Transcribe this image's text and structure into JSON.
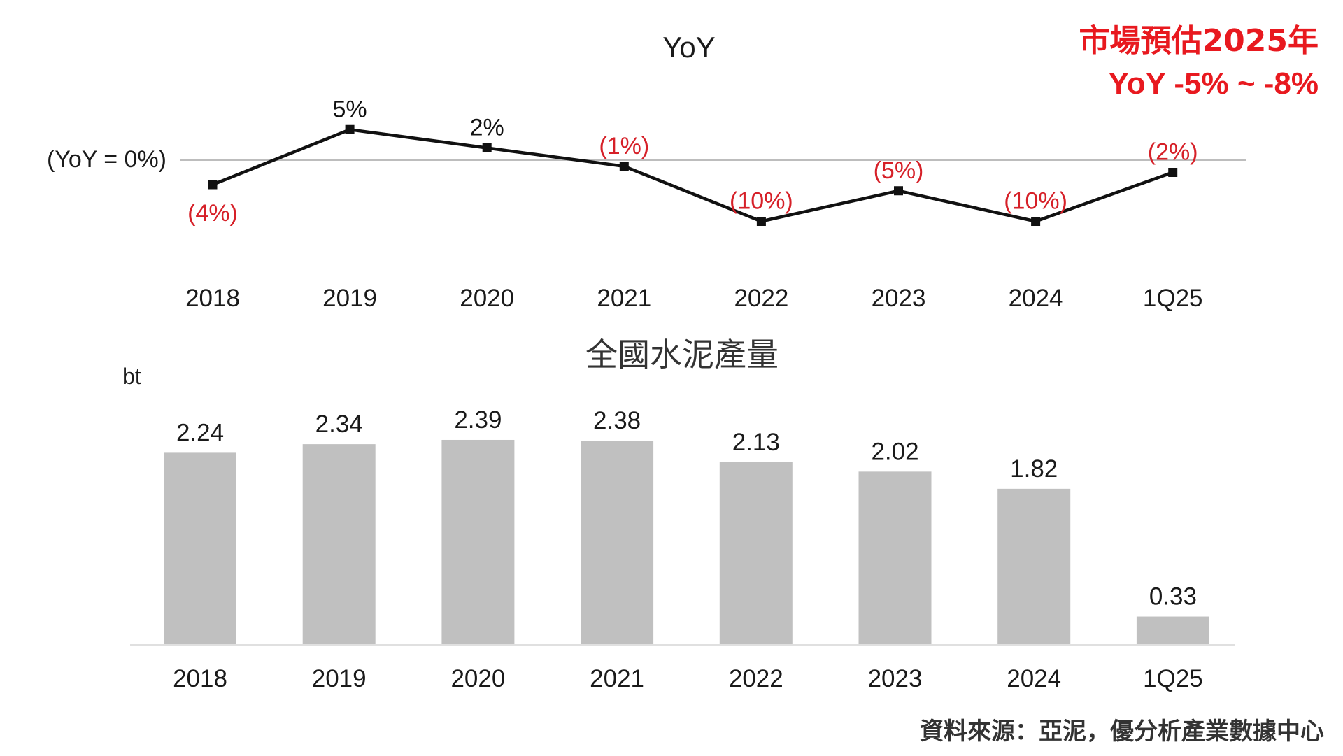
{
  "annotation": {
    "line1": "市場預估2025年",
    "line2": "YoY -5% ~ -8%",
    "color": "#e8191f"
  },
  "source_note": "資料來源：亞泥，優分析產業數據中心",
  "colors": {
    "line": "#111111",
    "negative_label": "#d62028",
    "positive_label": "#111111",
    "bar": "#c0c0c0",
    "reference_line": "#bdbdbd",
    "text": "#1a1a1a"
  },
  "chart_data": [
    {
      "type": "line",
      "title": "YoY",
      "reference_line_label": "(YoY = 0%)",
      "categories": [
        "2018",
        "2019",
        "2020",
        "2021",
        "2022",
        "2023",
        "2024",
        "1Q25"
      ],
      "values": [
        -4,
        5,
        2,
        -1,
        -10,
        -5,
        -10,
        -2
      ],
      "labels": [
        "(4%)",
        "5%",
        "2%",
        "(1%)",
        "(10%)",
        "(5%)",
        "(10%)",
        "(2%)"
      ],
      "ylim": [
        -16,
        10
      ],
      "grid": false
    },
    {
      "type": "bar",
      "title": "全國水泥產量",
      "ylabel": "bt",
      "categories": [
        "2018",
        "2019",
        "2020",
        "2021",
        "2022",
        "2023",
        "2024",
        "1Q25"
      ],
      "values": [
        2.24,
        2.34,
        2.39,
        2.38,
        2.13,
        2.02,
        1.82,
        0.33
      ],
      "labels": [
        "2.24",
        "2.34",
        "2.39",
        "2.38",
        "2.13",
        "2.02",
        "1.82",
        "0.33"
      ],
      "ylim": [
        0,
        2.39
      ],
      "grid": false
    }
  ]
}
